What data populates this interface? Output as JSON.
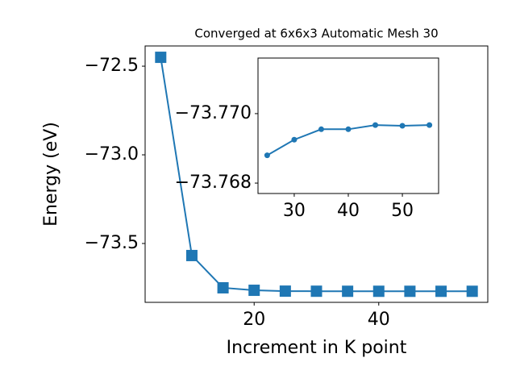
{
  "chart_data": [
    {
      "type": "line",
      "title": "Converged at 6x6x3 Automatic Mesh 30",
      "x_label": "Increment in K point",
      "y_label": "Energy (eV)",
      "x": [
        5,
        10,
        15,
        20,
        25,
        30,
        35,
        40,
        45,
        50,
        55
      ],
      "series": [
        {
          "name": "Energy",
          "color": "#1f77b4",
          "marker": "square",
          "values": [
            -72.45,
            -73.568,
            -73.75,
            -73.764,
            -73.7688,
            -73.76925,
            -73.76955,
            -73.76955,
            -73.76967,
            -73.76965,
            -73.76967
          ]
        }
      ],
      "xlim": [
        2.5,
        57.5
      ],
      "ylim": [
        -73.832,
        -72.386
      ],
      "xticks": [
        20,
        40
      ],
      "yticks": [
        {
          "value": -72.5,
          "label": "−72.5"
        },
        {
          "value": -73.0,
          "label": "−73.0"
        },
        {
          "value": -73.5,
          "label": "−73.5"
        }
      ]
    },
    {
      "type": "line",
      "x": [
        25,
        30,
        35,
        40,
        45,
        50,
        55
      ],
      "series": [
        {
          "name": "Energy",
          "color": "#1f77b4",
          "marker": "circle",
          "values": [
            -73.7688,
            -73.76925,
            -73.76955,
            -73.76955,
            -73.76967,
            -73.76965,
            -73.76967
          ]
        }
      ],
      "xlim": [
        23.3,
        56.7
      ],
      "ylim": [
        -73.7677,
        -73.7716
      ],
      "xticks": [
        30,
        40,
        50
      ],
      "yticks": [
        {
          "value": -73.77,
          "label": "−73.770"
        },
        {
          "value": -73.768,
          "label": "−73.768"
        }
      ]
    }
  ]
}
